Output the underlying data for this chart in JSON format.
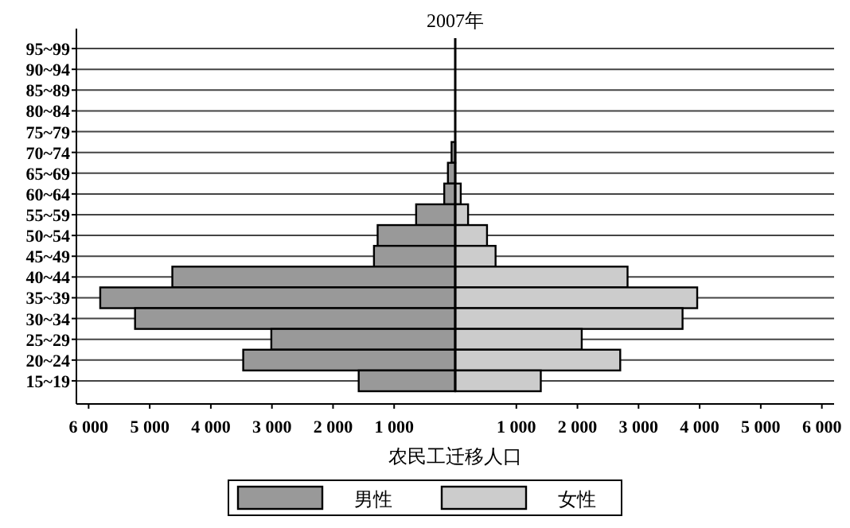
{
  "chart_data": {
    "type": "bar",
    "orientation": "horizontal",
    "title": "2007年",
    "xlabel": "农民工迁移人口",
    "categories": [
      "95~99",
      "90~94",
      "85~89",
      "80~84",
      "75~79",
      "70~74",
      "65~69",
      "60~64",
      "55~59",
      "50~54",
      "45~49",
      "40~44",
      "35~39",
      "30~34",
      "25~29",
      "20~24",
      "15~19"
    ],
    "series": [
      {
        "name": "男性",
        "color": "#999999",
        "values": [
          0,
          0,
          0,
          0,
          0,
          -60,
          -120,
          -180,
          -640,
          -1270,
          -1330,
          -4630,
          -5810,
          -5240,
          -3010,
          -3470,
          -1580
        ]
      },
      {
        "name": "女性",
        "color": "#cccccc",
        "values": [
          0,
          0,
          0,
          0,
          0,
          null,
          null,
          90,
          210,
          520,
          660,
          2820,
          3960,
          3720,
          2070,
          2700,
          1400
        ]
      }
    ],
    "xlim": [
      -6200,
      6200
    ],
    "xticks": [
      {
        "value": -6000,
        "label": "6 000"
      },
      {
        "value": -5000,
        "label": "5 000"
      },
      {
        "value": -4000,
        "label": "4 000"
      },
      {
        "value": -3000,
        "label": "3 000"
      },
      {
        "value": -2000,
        "label": "2 000"
      },
      {
        "value": -1000,
        "label": "1 000"
      },
      {
        "value": 1000,
        "label": "1 000"
      },
      {
        "value": 2000,
        "label": "2 000"
      },
      {
        "value": 3000,
        "label": "3 000"
      },
      {
        "value": 4000,
        "label": "4 000"
      },
      {
        "value": 5000,
        "label": "5 000"
      },
      {
        "value": 6000,
        "label": "6 000"
      }
    ],
    "stacked": true,
    "grid": "y",
    "legend": "bottom"
  }
}
